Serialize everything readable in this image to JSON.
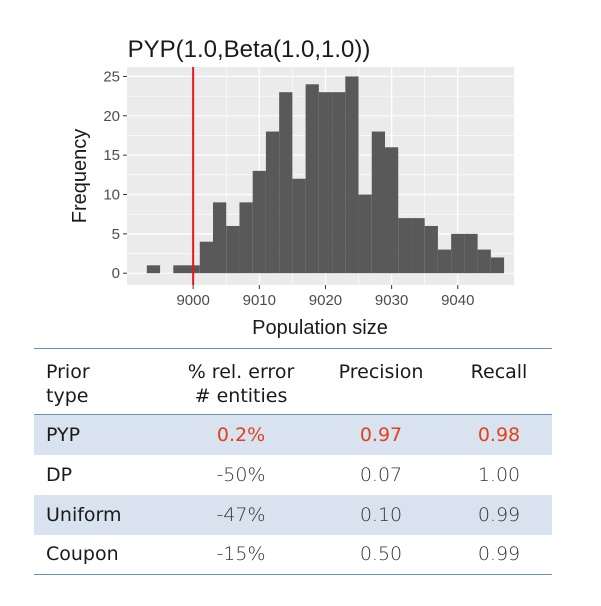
{
  "chart_data": {
    "type": "bar",
    "title": "PYP(1.0,Beta(1.0,1.0))",
    "xlabel": "Population size",
    "ylabel": "Frequency",
    "xlim": [
      8990,
      9048.5
    ],
    "ylim": [
      -1.5,
      26.2
    ],
    "xticks": [
      9000,
      9010,
      9020,
      9030,
      9040
    ],
    "yticks": [
      0,
      5,
      10,
      15,
      20,
      25
    ],
    "bin_width": 2,
    "bin_starts": [
      8993,
      8995,
      8997,
      8999,
      9001,
      9003,
      9005,
      9007,
      9009,
      9011,
      9013,
      9015,
      9017,
      9019,
      9021,
      9023,
      9025,
      9027,
      9029,
      9031,
      9033,
      9035,
      9037,
      9039,
      9041,
      9043,
      9045
    ],
    "values": [
      1,
      0,
      1,
      1,
      4,
      9,
      6,
      9,
      13,
      18,
      23,
      12,
      24,
      23,
      23,
      25,
      10,
      18,
      16,
      7,
      7,
      6,
      3,
      5,
      5,
      3,
      2
    ],
    "reference_line": {
      "x": 9000,
      "color": "#e8171b"
    },
    "colors": {
      "bar": "#595959",
      "panel": "#ebebeb",
      "grid": "#ffffff"
    }
  },
  "table": {
    "headers": [
      [
        "Prior",
        "type"
      ],
      [
        "% rel. error",
        "# entities"
      ],
      [
        "Precision"
      ],
      [
        "Recall"
      ]
    ],
    "rows": [
      {
        "type": "PYP",
        "error": "0.2%",
        "precision": "0.97",
        "recall": "0.98"
      },
      {
        "type": "DP",
        "error": "-50%",
        "precision": "0.07",
        "recall": "1.00"
      },
      {
        "type": "Uniform",
        "error": "-47%",
        "precision": "0.10",
        "recall": "0.99"
      },
      {
        "type": "Coupon",
        "error": "-15%",
        "precision": "0.50",
        "recall": "0.99"
      }
    ],
    "highlight_color": "#e0411f",
    "row_shade_color": "#d9e3ef",
    "rule_color": "#6b8fbf"
  }
}
